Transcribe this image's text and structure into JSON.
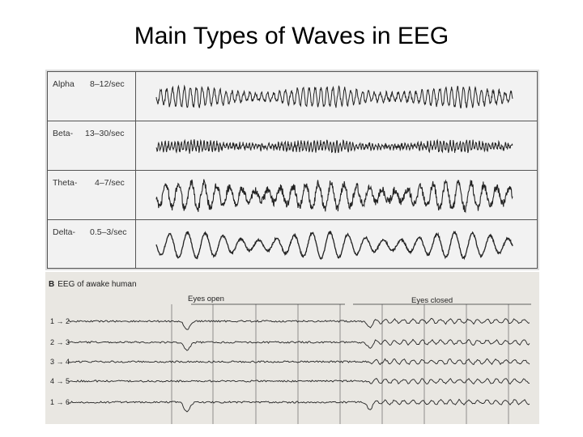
{
  "title": "Main Types of Waves in EEG",
  "panel_a": {
    "rows": [
      {
        "name": "Alpha",
        "freq": "8–12/sec",
        "cycles": 60,
        "amp": 12,
        "noise": 0.25
      },
      {
        "name": "Beta-",
        "freq": "13–30/sec",
        "cycles": 110,
        "amp": 6,
        "noise": 0.6
      },
      {
        "name": "Theta-",
        "freq": "4–7/sec",
        "cycles": 28,
        "amp": 17,
        "noise": 0.35
      },
      {
        "name": "Delta-",
        "freq": "0.5–3/sec",
        "cycles": 20,
        "amp": 16,
        "noise": 0.1
      }
    ]
  },
  "panel_b": {
    "letter": "B",
    "title": "EEG of awake human",
    "eyes_open": "Eyes open",
    "eyes_closed": "Eyes closed",
    "channels": [
      {
        "label": "1 → 2"
      },
      {
        "label": "2 → 3"
      },
      {
        "label": "3 → 4"
      },
      {
        "label": "4 → 5"
      },
      {
        "label": "1 → 6"
      }
    ]
  }
}
